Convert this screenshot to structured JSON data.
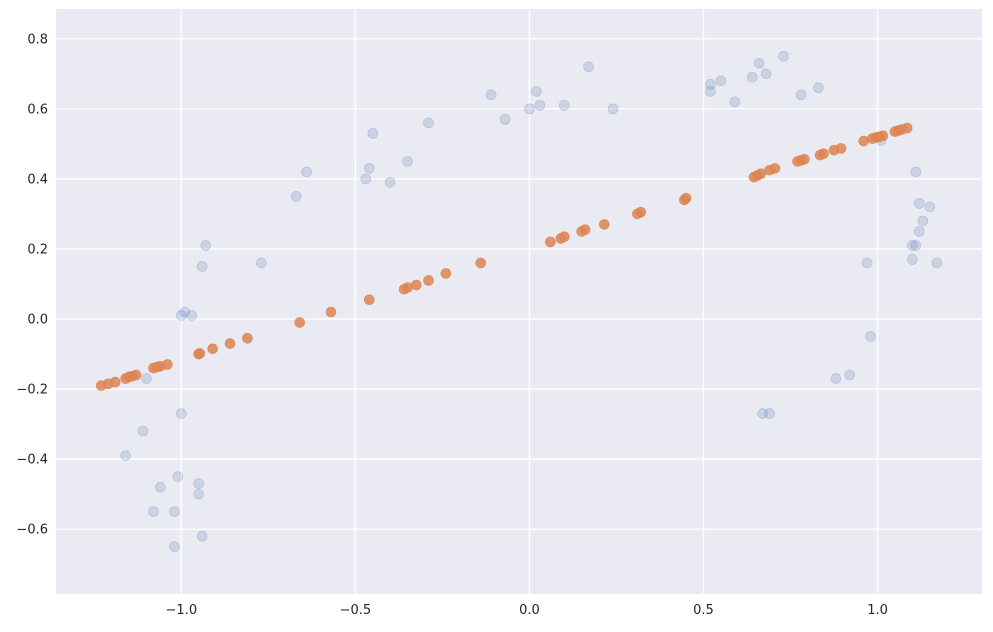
{
  "chart_data": {
    "type": "scatter",
    "title": "",
    "xlabel": "",
    "ylabel": "",
    "xlim": [
      -1.36,
      1.3
    ],
    "ylim": [
      -0.785,
      0.885
    ],
    "grid": true,
    "background": "#EAEAF2",
    "grid_color": "#FFFFFF",
    "x_ticks": [
      -1.0,
      -0.5,
      0.0,
      0.5,
      1.0
    ],
    "x_tick_labels": [
      "−1.0",
      "−0.5",
      "0.0",
      "0.5",
      "1.0"
    ],
    "y_ticks": [
      -0.6,
      -0.4,
      -0.2,
      0.0,
      0.2,
      0.4,
      0.6,
      0.8
    ],
    "y_tick_labels": [
      "−0.6",
      "−0.4",
      "−0.2",
      "0.0",
      "0.2",
      "0.4",
      "0.6",
      "0.8"
    ],
    "series": [
      {
        "color": "#4C72B0",
        "alpha": 0.2,
        "points": [
          [
            -0.93,
            0.21
          ],
          [
            -0.94,
            0.15
          ],
          [
            -0.77,
            0.16
          ],
          [
            -0.67,
            0.35
          ],
          [
            -0.64,
            0.42
          ],
          [
            -0.47,
            0.4
          ],
          [
            -0.46,
            0.43
          ],
          [
            -0.45,
            0.53
          ],
          [
            -0.4,
            0.39
          ],
          [
            -0.35,
            0.45
          ],
          [
            -0.29,
            0.56
          ],
          [
            -0.11,
            0.64
          ],
          [
            -0.07,
            0.57
          ],
          [
            0.0,
            0.6
          ],
          [
            0.02,
            0.65
          ],
          [
            0.03,
            0.61
          ],
          [
            0.1,
            0.61
          ],
          [
            0.17,
            0.72
          ],
          [
            0.24,
            0.6
          ],
          [
            0.52,
            0.67
          ],
          [
            0.52,
            0.65
          ],
          [
            0.55,
            0.68
          ],
          [
            0.59,
            0.62
          ],
          [
            0.64,
            0.69
          ],
          [
            0.66,
            0.73
          ],
          [
            0.68,
            0.7
          ],
          [
            0.73,
            0.75
          ],
          [
            0.78,
            0.64
          ],
          [
            0.83,
            0.66
          ],
          [
            1.01,
            0.51
          ],
          [
            1.11,
            0.42
          ],
          [
            1.12,
            0.33
          ],
          [
            1.15,
            0.32
          ],
          [
            1.13,
            0.28
          ],
          [
            1.12,
            0.25
          ],
          [
            1.1,
            0.21
          ],
          [
            1.11,
            0.21
          ],
          [
            1.1,
            0.17
          ],
          [
            1.17,
            0.16
          ],
          [
            0.97,
            0.16
          ],
          [
            0.98,
            -0.05
          ],
          [
            0.88,
            -0.17
          ],
          [
            0.92,
            -0.16
          ],
          [
            0.67,
            -0.27
          ],
          [
            0.69,
            -0.27
          ],
          [
            -0.99,
            0.02
          ],
          [
            -1.0,
            0.01
          ],
          [
            -0.97,
            0.01
          ],
          [
            -1.1,
            -0.17
          ],
          [
            -1.0,
            -0.27
          ],
          [
            -1.11,
            -0.32
          ],
          [
            -1.16,
            -0.39
          ],
          [
            -1.01,
            -0.45
          ],
          [
            -0.95,
            -0.47
          ],
          [
            -1.06,
            -0.48
          ],
          [
            -0.95,
            -0.5
          ],
          [
            -1.08,
            -0.55
          ],
          [
            -1.02,
            -0.55
          ],
          [
            -0.94,
            -0.62
          ],
          [
            -1.02,
            -0.65
          ]
        ]
      },
      {
        "color": "#DD8452",
        "alpha": 0.85,
        "points": [
          [
            -1.23,
            -0.19
          ],
          [
            -1.21,
            -0.185
          ],
          [
            -1.19,
            -0.18
          ],
          [
            -1.16,
            -0.17
          ],
          [
            -1.15,
            -0.165
          ],
          [
            -1.14,
            -0.163
          ],
          [
            -1.13,
            -0.16
          ],
          [
            -1.08,
            -0.14
          ],
          [
            -1.07,
            -0.137
          ],
          [
            -1.06,
            -0.135
          ],
          [
            -1.04,
            -0.13
          ],
          [
            -0.95,
            -0.1
          ],
          [
            -0.947,
            -0.098
          ],
          [
            -0.91,
            -0.085
          ],
          [
            -0.86,
            -0.07
          ],
          [
            -0.81,
            -0.055
          ],
          [
            -0.66,
            -0.01
          ],
          [
            -0.57,
            0.02
          ],
          [
            -0.46,
            0.055
          ],
          [
            -0.36,
            0.085
          ],
          [
            -0.35,
            0.09
          ],
          [
            -0.325,
            0.097
          ],
          [
            -0.29,
            0.11
          ],
          [
            -0.24,
            0.13
          ],
          [
            -0.14,
            0.16
          ],
          [
            0.06,
            0.22
          ],
          [
            0.09,
            0.23
          ],
          [
            0.1,
            0.235
          ],
          [
            0.15,
            0.25
          ],
          [
            0.16,
            0.255
          ],
          [
            0.215,
            0.27
          ],
          [
            0.31,
            0.3
          ],
          [
            0.32,
            0.305
          ],
          [
            0.445,
            0.34
          ],
          [
            0.45,
            0.345
          ],
          [
            0.645,
            0.405
          ],
          [
            0.655,
            0.41
          ],
          [
            0.665,
            0.415
          ],
          [
            0.69,
            0.425
          ],
          [
            0.705,
            0.43
          ],
          [
            0.77,
            0.45
          ],
          [
            0.78,
            0.453
          ],
          [
            0.79,
            0.456
          ],
          [
            0.835,
            0.468
          ],
          [
            0.845,
            0.472
          ],
          [
            0.875,
            0.482
          ],
          [
            0.895,
            0.487
          ],
          [
            0.96,
            0.508
          ],
          [
            0.985,
            0.515
          ],
          [
            0.995,
            0.518
          ],
          [
            1.005,
            0.52
          ],
          [
            1.015,
            0.523
          ],
          [
            1.05,
            0.535
          ],
          [
            1.06,
            0.538
          ],
          [
            1.07,
            0.541
          ],
          [
            1.085,
            0.545
          ]
        ]
      }
    ]
  }
}
